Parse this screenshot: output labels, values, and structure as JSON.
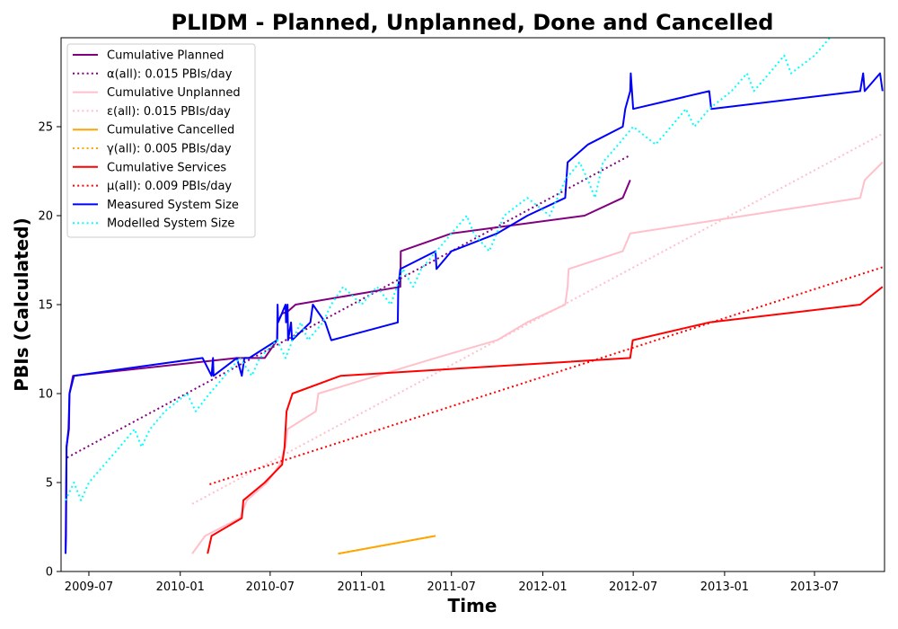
{
  "chart_data": {
    "type": "line",
    "title": "PLIDM - Planned, Unplanned, Done  and Cancelled",
    "xlabel": "Time",
    "ylabel": "PBIs (Calculated)",
    "xlim": [
      "2009-05-06",
      "2013-11-19"
    ],
    "ylim": [
      0,
      30
    ],
    "grid": false,
    "legend_position": "top-left",
    "x_ticks": [
      "2009-07",
      "2010-01",
      "2010-07",
      "2011-01",
      "2011-07",
      "2012-01",
      "2012-07",
      "2013-01",
      "2013-07"
    ],
    "y_ticks": [
      0,
      5,
      10,
      15,
      20,
      25
    ],
    "series": [
      {
        "name": "Cumulative Planned",
        "color": "#800080",
        "style": "solid",
        "points": [
          [
            "2009-05-15",
            1
          ],
          [
            "2009-05-17",
            7
          ],
          [
            "2009-05-22",
            8
          ],
          [
            "2009-05-23",
            10
          ],
          [
            "2009-05-30",
            11
          ],
          [
            "2010-04-25",
            12
          ],
          [
            "2010-05-20",
            12
          ],
          [
            "2010-06-20",
            12
          ],
          [
            "2010-07-15",
            13
          ],
          [
            "2010-07-16",
            14
          ],
          [
            "2010-07-25",
            14.5
          ],
          [
            "2010-08-05",
            14.6
          ],
          [
            "2010-08-21",
            15
          ],
          [
            "2011-03-20",
            16
          ],
          [
            "2011-03-21",
            18
          ],
          [
            "2011-07-01",
            19
          ],
          [
            "2012-03-25",
            20
          ],
          [
            "2012-06-10",
            21
          ],
          [
            "2012-06-25",
            22
          ]
        ]
      },
      {
        "name": "α(all): 0.015 PBIs/day",
        "color": "#800080",
        "style": "dotted",
        "points": [
          [
            "2009-05-18",
            6.4
          ],
          [
            "2012-06-25",
            23.4
          ]
        ]
      },
      {
        "name": "Cumulative Unplanned",
        "color": "#ffc0cb",
        "style": "solid",
        "points": [
          [
            "2010-01-25",
            1
          ],
          [
            "2010-02-20",
            2
          ],
          [
            "2010-05-01",
            3
          ],
          [
            "2010-05-15",
            4
          ],
          [
            "2010-06-25",
            5
          ],
          [
            "2010-07-20",
            6
          ],
          [
            "2010-08-01",
            7
          ],
          [
            "2010-08-05",
            8
          ],
          [
            "2010-10-01",
            9
          ],
          [
            "2010-10-06",
            10
          ],
          [
            "2011-02-01",
            11
          ],
          [
            "2011-05-30",
            12
          ],
          [
            "2011-10-01",
            13
          ],
          [
            "2011-11-30",
            14
          ],
          [
            "2012-02-15",
            15
          ],
          [
            "2012-02-20",
            16
          ],
          [
            "2012-02-22",
            17
          ],
          [
            "2012-06-10",
            18
          ],
          [
            "2012-06-25",
            19
          ],
          [
            "2013-10-01",
            21
          ],
          [
            "2013-10-10",
            22
          ],
          [
            "2013-11-15",
            23
          ]
        ]
      },
      {
        "name": "ε(all): 0.015 PBIs/day",
        "color": "#ffc0cb",
        "style": "dotted",
        "points": [
          [
            "2010-01-25",
            3.8
          ],
          [
            "2013-11-15",
            24.6
          ]
        ]
      },
      {
        "name": "Cumulative Cancelled",
        "color": "#ffa500",
        "style": "solid",
        "points": [
          [
            "2010-11-15",
            1
          ],
          [
            "2011-05-30",
            2
          ]
        ]
      },
      {
        "name": "γ(all): 0.005 PBIs/day",
        "color": "#ffa500",
        "style": "dotted",
        "points": [
          [
            "2010-11-15",
            1
          ],
          [
            "2011-05-30",
            2
          ]
        ]
      },
      {
        "name": "Cumulative Services",
        "color": "#ff0000",
        "style": "solid",
        "points": [
          [
            "2010-02-25",
            1
          ],
          [
            "2010-03-05",
            2
          ],
          [
            "2010-05-05",
            3
          ],
          [
            "2010-05-08",
            4
          ],
          [
            "2010-06-20",
            5
          ],
          [
            "2010-07-25",
            6
          ],
          [
            "2010-07-30",
            7
          ],
          [
            "2010-08-03",
            9
          ],
          [
            "2010-08-15",
            10
          ],
          [
            "2010-11-20",
            11
          ],
          [
            "2012-06-25",
            12
          ],
          [
            "2012-06-30",
            13
          ],
          [
            "2012-12-01",
            14
          ],
          [
            "2013-10-01",
            15
          ],
          [
            "2013-11-15",
            16
          ]
        ]
      },
      {
        "name": "μ(all): 0.009 PBIs/day",
        "color": "#ff0000",
        "style": "dotted",
        "points": [
          [
            "2010-03-01",
            4.9
          ],
          [
            "2013-11-15",
            17.1
          ]
        ]
      },
      {
        "name": "Measured System Size",
        "color": "#0000ff",
        "style": "solid",
        "points": [
          [
            "2009-05-15",
            1
          ],
          [
            "2009-05-16",
            2
          ],
          [
            "2009-05-17",
            7
          ],
          [
            "2009-05-21",
            8
          ],
          [
            "2009-05-23",
            10
          ],
          [
            "2009-06-01",
            11
          ],
          [
            "2010-02-15",
            12
          ],
          [
            "2010-03-05",
            11
          ],
          [
            "2010-03-08",
            12
          ],
          [
            "2010-03-09",
            11
          ],
          [
            "2010-04-25",
            12
          ],
          [
            "2010-05-05",
            11
          ],
          [
            "2010-05-10",
            12
          ],
          [
            "2010-05-20",
            12
          ],
          [
            "2010-07-15",
            13
          ],
          [
            "2010-07-16",
            15
          ],
          [
            "2010-07-17",
            14
          ],
          [
            "2010-08-01",
            15
          ],
          [
            "2010-08-02",
            14
          ],
          [
            "2010-08-05",
            15
          ],
          [
            "2010-08-06",
            13
          ],
          [
            "2010-08-12",
            14
          ],
          [
            "2010-08-14",
            13
          ],
          [
            "2010-09-20",
            14
          ],
          [
            "2010-09-25",
            15
          ],
          [
            "2010-10-20",
            14
          ],
          [
            "2010-11-01",
            13
          ],
          [
            "2011-03-15",
            14
          ],
          [
            "2011-03-16",
            16
          ],
          [
            "2011-03-20",
            17
          ],
          [
            "2011-05-30",
            18
          ],
          [
            "2011-06-01",
            17
          ],
          [
            "2011-07-01",
            18
          ],
          [
            "2011-10-01",
            19
          ],
          [
            "2011-12-01",
            20
          ],
          [
            "2012-02-15",
            21
          ],
          [
            "2012-02-20",
            23
          ],
          [
            "2012-04-01",
            24
          ],
          [
            "2012-06-10",
            25
          ],
          [
            "2012-06-15",
            26
          ],
          [
            "2012-06-25",
            27
          ],
          [
            "2012-06-26",
            28
          ],
          [
            "2012-07-01",
            26
          ],
          [
            "2012-12-01",
            27
          ],
          [
            "2012-12-05",
            26
          ],
          [
            "2013-10-01",
            27
          ],
          [
            "2013-10-07",
            28
          ],
          [
            "2013-10-10",
            27
          ],
          [
            "2013-11-10",
            28
          ],
          [
            "2013-11-15",
            27
          ]
        ]
      },
      {
        "name": "Modelled System Size",
        "color": "#00ffff",
        "style": "dotted",
        "points": [
          [
            "2009-05-15",
            4
          ],
          [
            "2009-06-01",
            5
          ],
          [
            "2009-06-15",
            4
          ],
          [
            "2009-07-01",
            5
          ],
          [
            "2009-08-01",
            6
          ],
          [
            "2009-09-01",
            7
          ],
          [
            "2009-10-01",
            8
          ],
          [
            "2009-10-15",
            7
          ],
          [
            "2009-11-01",
            8
          ],
          [
            "2009-12-01",
            9
          ],
          [
            "2010-01-15",
            10
          ],
          [
            "2010-02-01",
            9
          ],
          [
            "2010-03-01",
            10
          ],
          [
            "2010-04-01",
            11
          ],
          [
            "2010-05-01",
            12
          ],
          [
            "2010-05-25",
            11
          ],
          [
            "2010-06-10",
            12
          ],
          [
            "2010-07-15",
            13
          ],
          [
            "2010-08-01",
            12
          ],
          [
            "2010-08-15",
            13
          ],
          [
            "2010-09-01",
            14
          ],
          [
            "2010-09-15",
            13
          ],
          [
            "2010-10-15",
            14
          ],
          [
            "2010-11-01",
            15
          ],
          [
            "2010-11-25",
            16
          ],
          [
            "2011-01-01",
            15
          ],
          [
            "2011-02-01",
            16
          ],
          [
            "2011-03-01",
            15
          ],
          [
            "2011-03-25",
            17
          ],
          [
            "2011-04-15",
            16
          ],
          [
            "2011-05-01",
            17
          ],
          [
            "2011-06-01",
            18
          ],
          [
            "2011-07-01",
            19
          ],
          [
            "2011-08-01",
            20
          ],
          [
            "2011-08-15",
            19
          ],
          [
            "2011-09-15",
            18
          ],
          [
            "2011-10-15",
            20
          ],
          [
            "2011-12-01",
            21
          ],
          [
            "2012-01-15",
            20
          ],
          [
            "2012-02-15",
            22
          ],
          [
            "2012-03-15",
            23
          ],
          [
            "2012-04-01",
            22
          ],
          [
            "2012-04-15",
            21
          ],
          [
            "2012-05-01",
            23
          ],
          [
            "2012-06-01",
            24
          ],
          [
            "2012-07-01",
            25
          ],
          [
            "2012-08-15",
            24
          ],
          [
            "2012-09-15",
            25
          ],
          [
            "2012-10-15",
            26
          ],
          [
            "2012-11-01",
            25
          ],
          [
            "2012-12-01",
            26
          ],
          [
            "2013-01-15",
            27
          ],
          [
            "2013-02-15",
            28
          ],
          [
            "2013-03-01",
            27
          ],
          [
            "2013-04-01",
            28
          ],
          [
            "2013-05-01",
            29
          ],
          [
            "2013-05-15",
            28
          ],
          [
            "2013-07-01",
            29
          ],
          [
            "2013-08-01",
            30
          ]
        ]
      }
    ]
  }
}
